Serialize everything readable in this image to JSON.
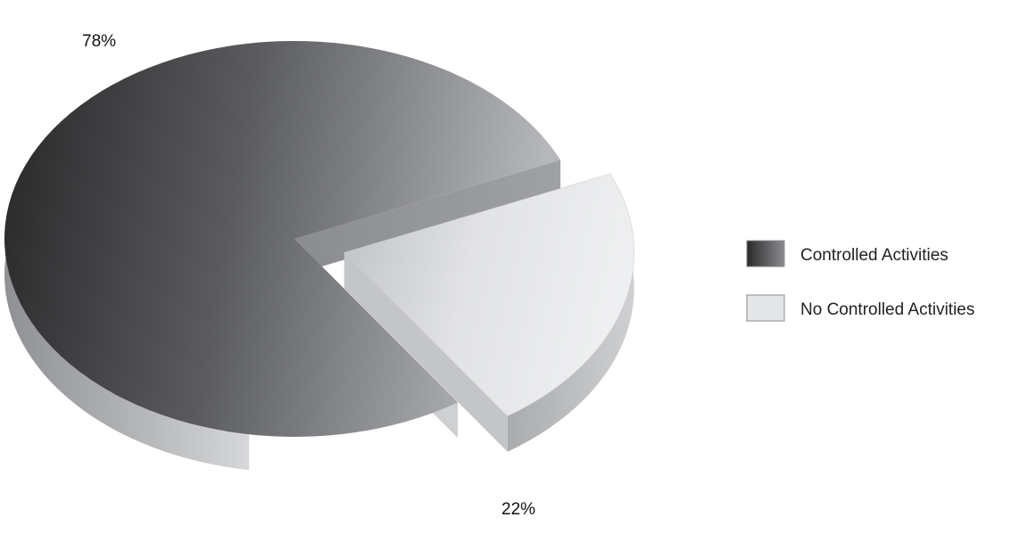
{
  "chart_data": {
    "type": "pie",
    "title": "",
    "categories": [
      "Controlled Activities",
      "No Controlled Activities"
    ],
    "values": [
      78,
      22
    ],
    "data_labels": [
      "78%",
      "22%"
    ],
    "style": "3d-exploded",
    "legend_position": "right",
    "colors": [
      "#555557",
      "#e4e5e7"
    ]
  }
}
